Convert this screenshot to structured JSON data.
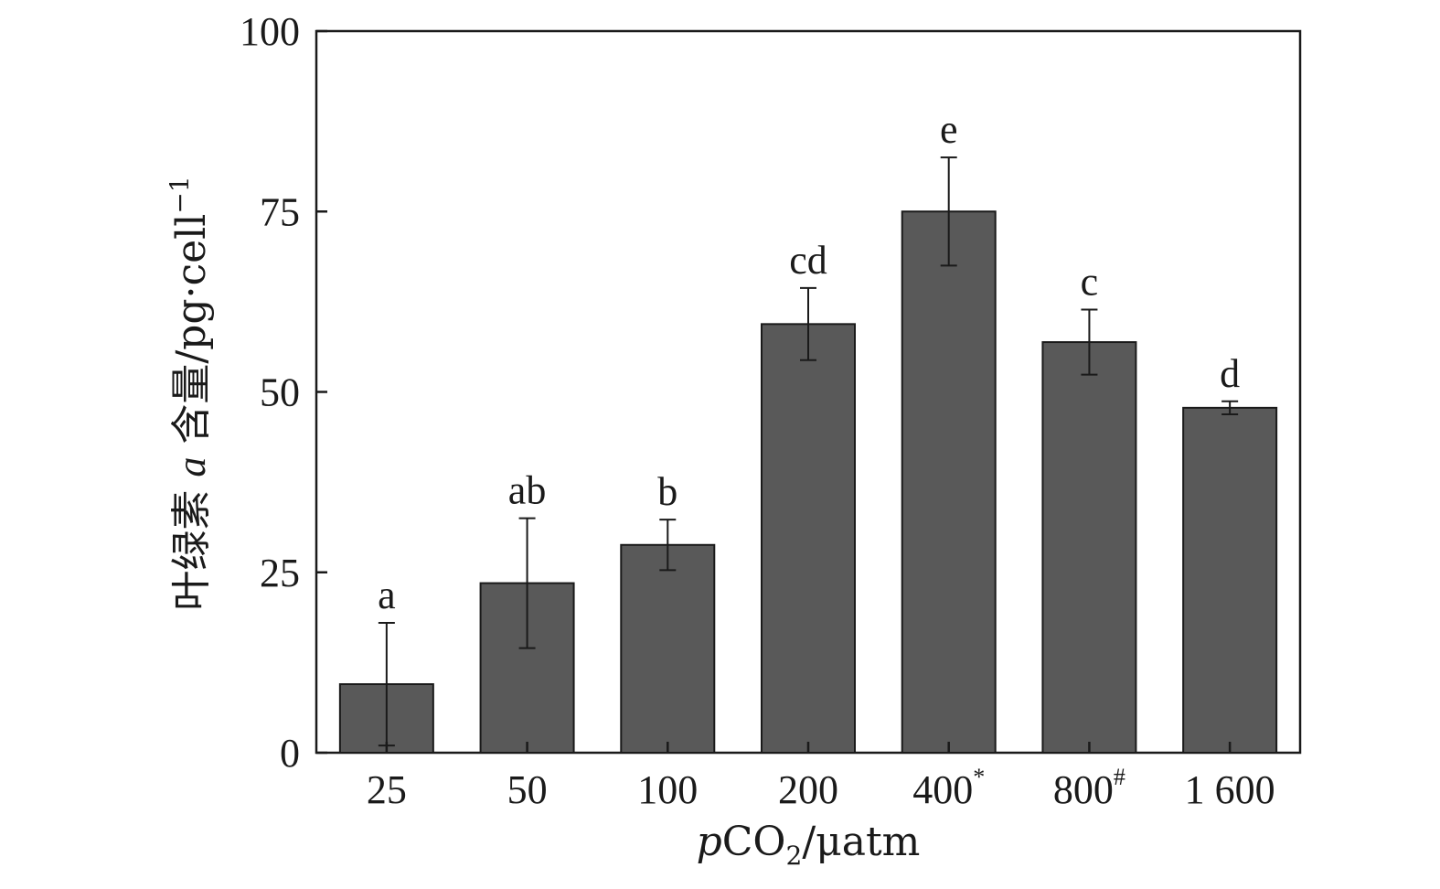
{
  "chart_data": {
    "type": "bar",
    "categories": [
      "25",
      "50",
      "100",
      "200",
      "400",
      "800",
      "1 600"
    ],
    "category_superscripts": [
      "",
      "",
      "",
      "",
      "*",
      "#",
      ""
    ],
    "values": [
      9.5,
      23.5,
      28.8,
      59.4,
      75.0,
      56.9,
      47.8
    ],
    "errors": [
      8.5,
      9.0,
      3.5,
      5.0,
      7.5,
      4.5,
      0.9
    ],
    "significance_labels": [
      "a",
      "ab",
      "b",
      "cd",
      "e",
      "c",
      "d"
    ],
    "ylim": [
      0,
      100
    ],
    "yticks": [
      0,
      25,
      50,
      75,
      100
    ],
    "ylabel": "叶绿素 a 含量/pg·cell",
    "ylabel_parts": {
      "main": "叶绿素 ",
      "italic": "a",
      "rest": " 含量/pg·cell",
      "superscript": "−1"
    },
    "xlabel": "pCO2/μatm",
    "xlabel_parts": {
      "italic": "p",
      "main": "CO",
      "subscript": "2",
      "rest": "/μatm"
    },
    "bar_color": "#595959",
    "grid": false,
    "legend": "none"
  }
}
